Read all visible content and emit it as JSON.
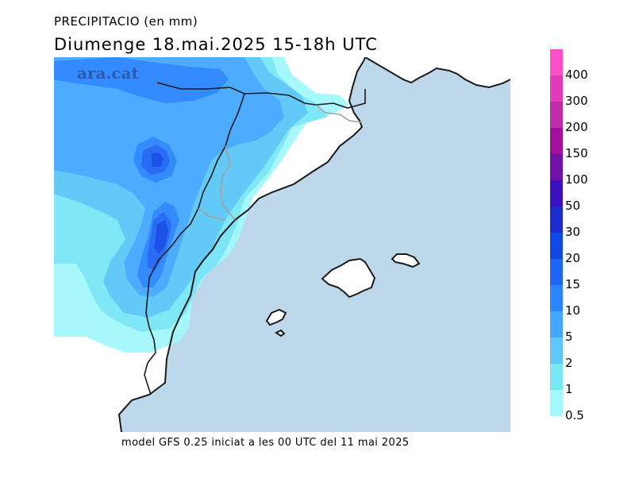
{
  "header": {
    "variable": "PRECIPITACIO (en mm)",
    "datetime": "Diumenge  18.mai.2025  15-18h  UTC"
  },
  "watermark": "ara.cat",
  "footer": "model GFS 0.25 iniciat a les 00 UTC del 11 mai 2025",
  "colors": {
    "sea": "#bcd8ea",
    "land": "#ffffff",
    "coast": "#1a1a1a",
    "border": "#a0a0a0"
  },
  "legend": {
    "levels": [
      {
        "label": "400",
        "color": "#ff4fc9"
      },
      {
        "label": "300",
        "color": "#e03cb8"
      },
      {
        "label": "200",
        "color": "#c02ca7"
      },
      {
        "label": "150",
        "color": "#a01098"
      },
      {
        "label": "100",
        "color": "#7011a8"
      },
      {
        "label": "50",
        "color": "#3a10c0"
      },
      {
        "label": "30",
        "color": "#1c2ccf"
      },
      {
        "label": "20",
        "color": "#1048e6"
      },
      {
        "label": "15",
        "color": "#1e66f5"
      },
      {
        "label": "10",
        "color": "#2a84ff"
      },
      {
        "label": "5",
        "color": "#44a8ff"
      },
      {
        "label": "2",
        "color": "#5bc8f8"
      },
      {
        "label": "1",
        "color": "#79e6f6"
      },
      {
        "label": "0.5",
        "color": "#a2f8fb"
      }
    ]
  }
}
